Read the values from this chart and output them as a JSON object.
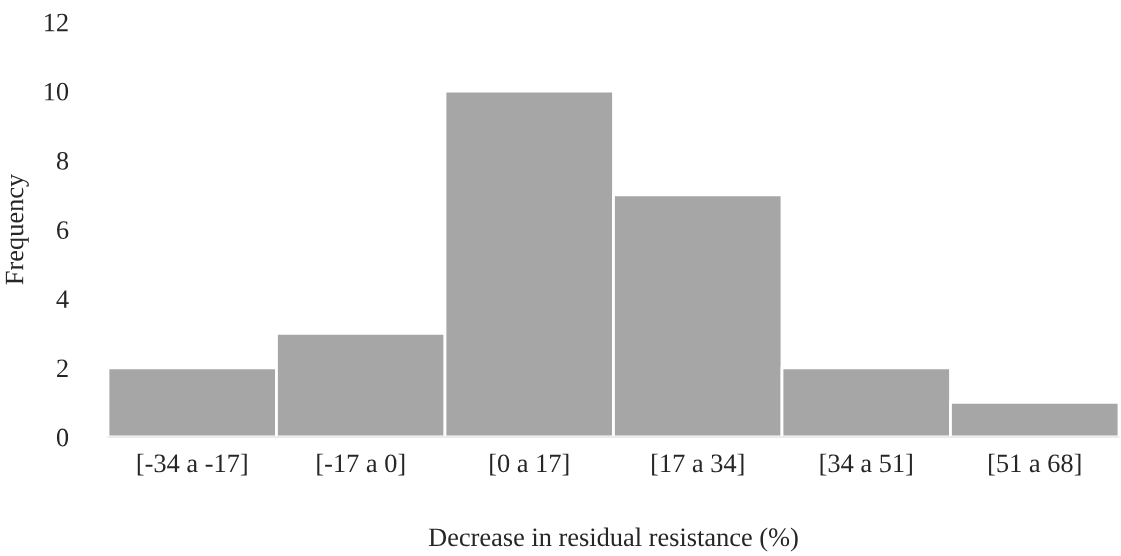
{
  "chart_data": {
    "type": "bar",
    "xlabel": "Decrease in residual resistance (%)",
    "ylabel": "Frequency",
    "categories": [
      "[-34 a -17]",
      "[-17 a 0]",
      "[0 a 17]",
      "[17 a 34]",
      "[34 a 51]",
      "[51 a 68]"
    ],
    "values": [
      2,
      3,
      10,
      7,
      2,
      1
    ],
    "color": "#a6a6a6",
    "ylim": [
      0,
      12
    ],
    "yticks": [
      0,
      2,
      4,
      6,
      8,
      10,
      12
    ],
    "grid": false,
    "legend": false
  }
}
